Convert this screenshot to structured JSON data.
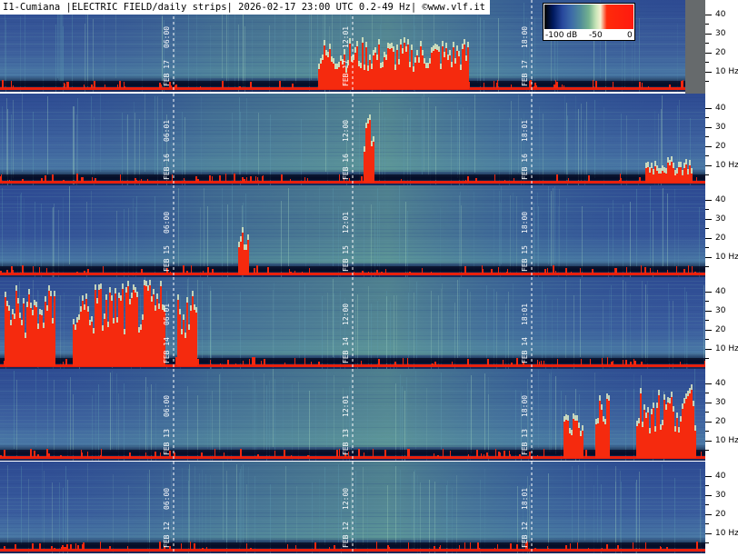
{
  "title": "I1-Cumiana |ELECTRIC FIELD/daily strips| 2026-02-17 23:00 UTC 0.2-49 Hz| ©www.vlf.it",
  "colorbar": {
    "labels": [
      "-100 dB",
      "-50",
      "0"
    ]
  },
  "yaxis": {
    "ticks": [
      "40",
      "30",
      "20",
      "10 Hz"
    ]
  },
  "chart_data": {
    "type": "heatmap",
    "title": "I1-Cumiana |ELECTRIC FIELD/daily strips| 2026-02-17 23:00 UTC 0.2-49 Hz| ©www.vlf.it",
    "x_axis": "time of day (UTC), 00:00–24:00 per strip",
    "y_axis": {
      "ticks": [
        "10 Hz",
        "20",
        "30",
        "40"
      ],
      "range": [
        0.2,
        49
      ]
    },
    "color_scale": {
      "labels": [
        "-100 dB",
        "-50",
        "0"
      ],
      "range_db": [
        -100,
        0
      ]
    },
    "strips": [
      {
        "day": "FEB 17",
        "markers": [
          "06:00",
          "12:01",
          "18:00"
        ]
      },
      {
        "day": "FEB 16",
        "markers": [
          "06:01",
          "12:00",
          "18:01"
        ]
      },
      {
        "day": "FEB 15",
        "markers": [
          "06:00",
          "12:01",
          "18:00"
        ]
      },
      {
        "day": "FEB 14",
        "markers": [
          "06:01",
          "12:00",
          "18:01"
        ]
      },
      {
        "day": "FEB 13",
        "markers": [
          "06:00",
          "12:01",
          "18:00"
        ]
      },
      {
        "day": "FEB 12",
        "markers": [
          "06:00",
          "12:00",
          "18:01"
        ]
      }
    ]
  }
}
